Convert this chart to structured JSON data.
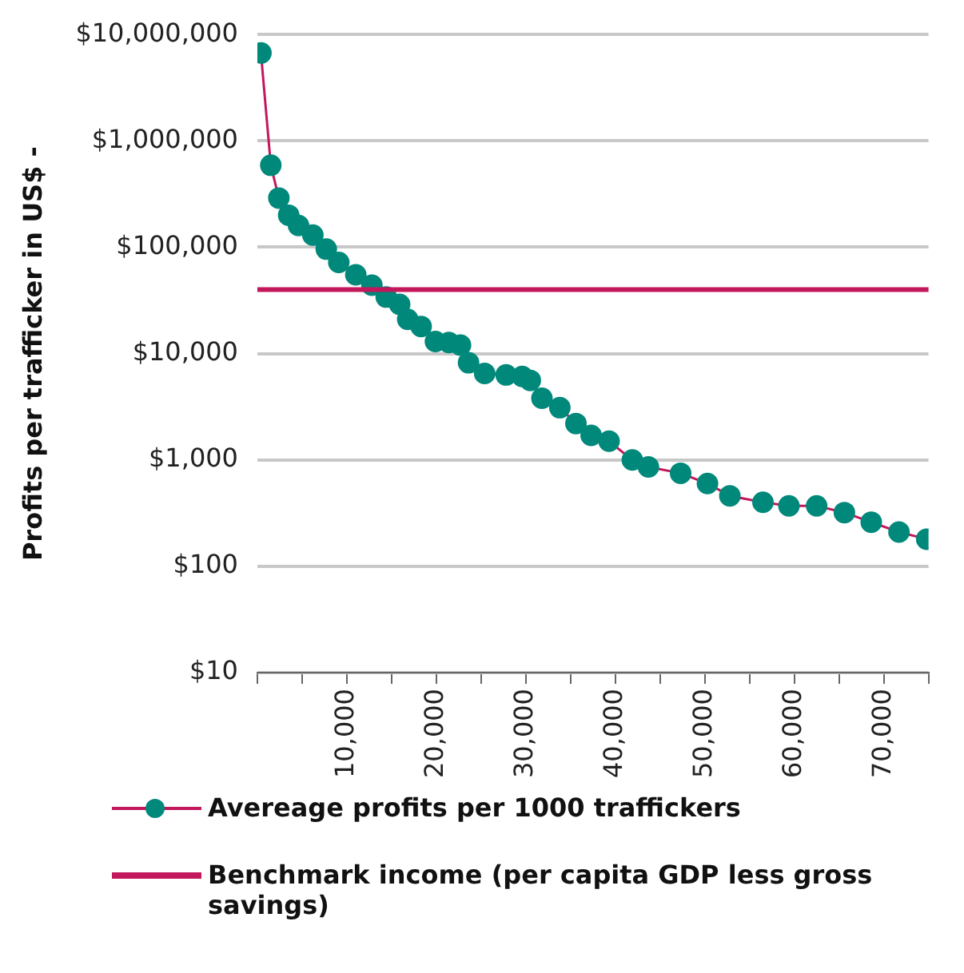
{
  "chart_data": {
    "type": "line",
    "ylabel": "Profits per trafficker in US$ -",
    "log": "y",
    "grid": "y",
    "legend": "bottom",
    "marker": "circle",
    "line_style": "solid",
    "xlim": [
      0,
      75000
    ],
    "xticks": [
      {
        "value": 0,
        "label": null
      },
      {
        "value": 5000,
        "label": null
      },
      {
        "value": 10000,
        "label": "10,000"
      },
      {
        "value": 15000,
        "label": null
      },
      {
        "value": 20000,
        "label": "20,000"
      },
      {
        "value": 25000,
        "label": null
      },
      {
        "value": 30000,
        "label": "30,000"
      },
      {
        "value": 35000,
        "label": null
      },
      {
        "value": 40000,
        "label": "40,000"
      },
      {
        "value": 45000,
        "label": null
      },
      {
        "value": 50000,
        "label": "50,000"
      },
      {
        "value": 55000,
        "label": null
      },
      {
        "value": 60000,
        "label": "60,000"
      },
      {
        "value": 65000,
        "label": null
      },
      {
        "value": 70000,
        "label": "70,000"
      },
      {
        "value": 75000,
        "label": null
      }
    ],
    "ylim": [
      10,
      10000000
    ],
    "yticks": [
      {
        "value": 10,
        "label": "$10"
      },
      {
        "value": 100,
        "label": "$100"
      },
      {
        "value": 1000,
        "label": "$1,000"
      },
      {
        "value": 10000,
        "label": "$10,000"
      },
      {
        "value": 100000,
        "label": "$100,000"
      },
      {
        "value": 1000000,
        "label": "$1,000,000"
      },
      {
        "value": 10000000,
        "label": "$10,000,000"
      }
    ],
    "x": [
      400,
      1500,
      2400,
      3500,
      4600,
      6200,
      7700,
      9100,
      11000,
      12800,
      14400,
      15900,
      16800,
      18300,
      19900,
      21400,
      22700,
      23600,
      25400,
      27800,
      29600,
      30500,
      31800,
      33800,
      35600,
      37300,
      39300,
      41900,
      43700,
      47300,
      50300,
      52800,
      56500,
      59400,
      62500,
      65600,
      68600,
      71700,
      74800
    ],
    "series": [
      {
        "name": "Avereage profits per 1000 traffickers",
        "color": "#c2185b",
        "colors": [
          "#00897b",
          "#00897b",
          "#00897b",
          "#00897b",
          "#00897b",
          "#00897b",
          "#00897b",
          "#00897b",
          "#00897b",
          "#00897b",
          "#00897b",
          "#00897b",
          "#00897b",
          "#00897b",
          "#00897b",
          "#00897b",
          "#00897b",
          "#00897b",
          "#00897b",
          "#00897b",
          "#00897b",
          "#00897b",
          "#00897b",
          "#00897b",
          "#00897b",
          "#00897b",
          "#00897b",
          "#00897b",
          "#00897b",
          "#00897b",
          "#00897b",
          "#00897b",
          "#00897b",
          "#00897b",
          "#00897b",
          "#00897b",
          "#00897b",
          "#00897b",
          "#00897b"
        ],
        "values": [
          6700000,
          590000,
          290000,
          200000,
          160000,
          130000,
          96000,
          72000,
          55000,
          44000,
          34000,
          29000,
          21000,
          18000,
          13000,
          12700,
          12000,
          8200,
          6500,
          6300,
          6100,
          5600,
          3800,
          3100,
          2200,
          1700,
          1500,
          1000,
          860,
          750,
          600,
          460,
          400,
          370,
          370,
          320,
          260,
          210,
          180
        ]
      }
    ],
    "ref_lines": [
      {
        "axis": "y",
        "value": 40000,
        "label": "Benchmark income (per capita GDP less gross savings)",
        "color": "#c2185b",
        "line_style": "solid"
      }
    ]
  }
}
